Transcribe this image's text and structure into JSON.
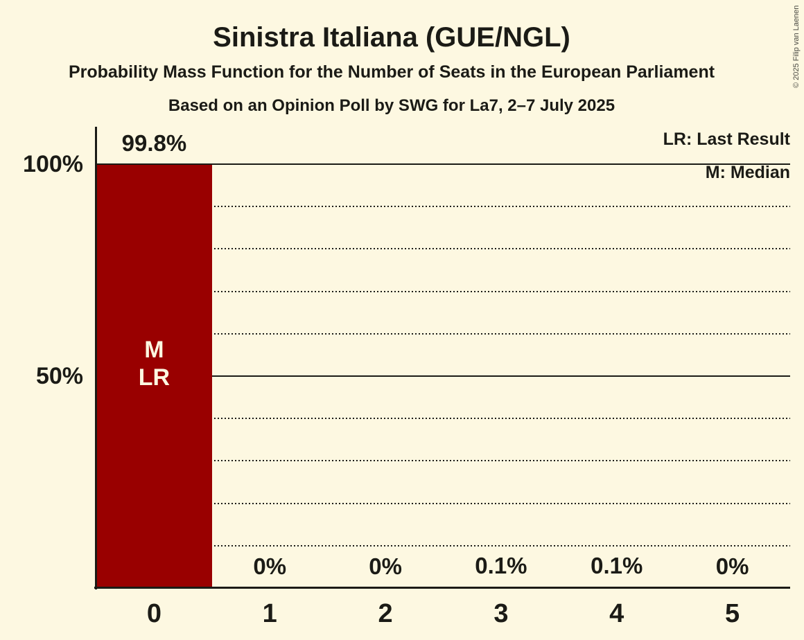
{
  "copyright": "© 2025 Filip van Laenen",
  "chart_data": {
    "type": "bar",
    "title": "Sinistra Italiana (GUE/NGL)",
    "subtitle": "Probability Mass Function for the Number of Seats in the European Parliament",
    "source": "Based on an Opinion Poll by SWG for La7, 2–7 July 2025",
    "xlabel": "",
    "ylabel": "",
    "categories": [
      "0",
      "1",
      "2",
      "3",
      "4",
      "5"
    ],
    "values": [
      99.8,
      0,
      0,
      0.1,
      0.1,
      0
    ],
    "value_labels": [
      "99.8%",
      "0%",
      "0%",
      "0.1%",
      "0.1%",
      "0%"
    ],
    "bar_annotations": [
      {
        "index": 0,
        "lines": [
          "M",
          "LR"
        ]
      }
    ],
    "legend": [
      "LR: Last Result",
      "M: Median"
    ],
    "legend_notes": {
      "LR": "Last Result",
      "M": "Median"
    },
    "legend_position": "top-right",
    "ylim": [
      0,
      100
    ],
    "y_ticks": [
      {
        "value": 100,
        "label": "100%"
      },
      {
        "value": 50,
        "label": "50%"
      }
    ],
    "gridlines": {
      "dotted_values": [
        10,
        20,
        30,
        40,
        60,
        70,
        80,
        90
      ],
      "solid_values": [
        50,
        100
      ]
    },
    "colors": {
      "bar": "#990000",
      "background": "#fdf8e1",
      "text": "#1b1b16",
      "bar_label_text": "#fdf8e1"
    }
  }
}
